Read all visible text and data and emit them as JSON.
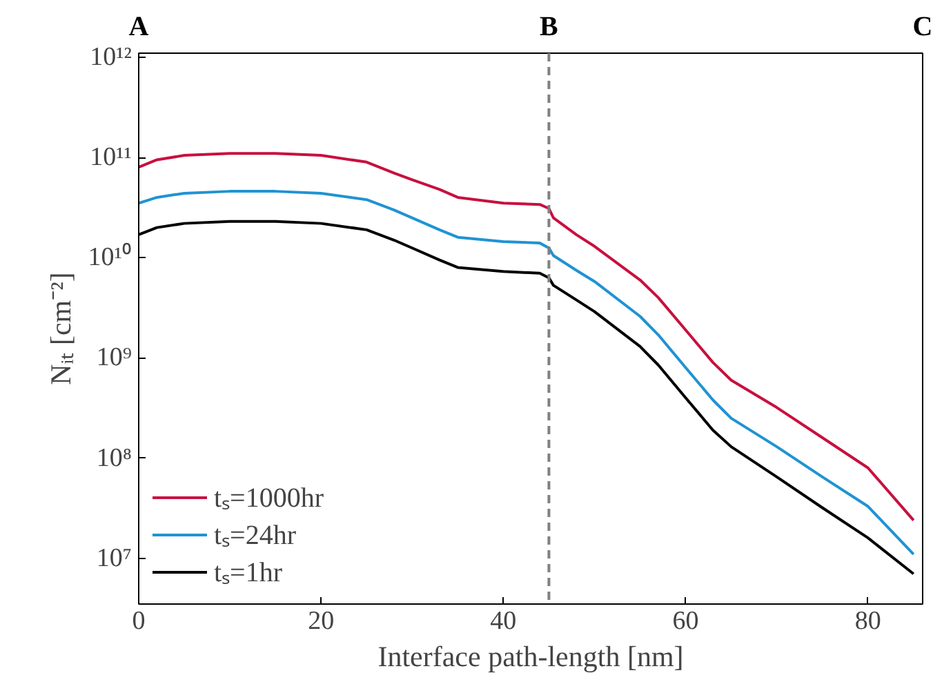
{
  "chart_data": {
    "type": "line",
    "xlabel": "Interface path-length [nm]",
    "ylabel": "Nᵢₜ [cm⁻²]",
    "log": "y",
    "grid": false,
    "legend": "bottom left",
    "line_style": "solid",
    "marker": "none",
    "xlim": [
      0,
      86
    ],
    "xticks": [
      0,
      20,
      40,
      60,
      80
    ],
    "ylim": [
      3500000,
      1100000000000
    ],
    "yticks": [
      {
        "value": 10000000,
        "label": "10⁷"
      },
      {
        "value": 100000000,
        "label": "10⁸"
      },
      {
        "value": 1000000000,
        "label": "10⁹"
      },
      {
        "value": 10000000000,
        "label": "10¹⁰"
      },
      {
        "value": 100000000000,
        "label": "10¹¹"
      },
      {
        "value": 1000000000000,
        "label": "10¹²"
      }
    ],
    "x": [
      0,
      2,
      5,
      10,
      15,
      20,
      25,
      28,
      30,
      33,
      35,
      40,
      44,
      45,
      45.5,
      48,
      50,
      55,
      57,
      60,
      63,
      65,
      70,
      75,
      80,
      85
    ],
    "series": [
      {
        "name": "tₛ=1000hr",
        "color": "#c8103e",
        "values": [
          80000000000.0,
          95000000000.0,
          105000000000.0,
          110000000000.0,
          110000000000.0,
          105000000000.0,
          90000000000.0,
          70000000000.0,
          60000000000.0,
          48000000000.0,
          40000000000.0,
          35000000000.0,
          34000000000.0,
          31000000000.0,
          25000000000.0,
          17000000000.0,
          13000000000.0,
          6000000000.0,
          4000000000.0,
          1900000000.0,
          900000000.0,
          600000000.0,
          320000000.0,
          160000000.0,
          80000000.0,
          24000000.0
        ]
      },
      {
        "name": "tₛ=24hr",
        "color": "#1f93d2",
        "values": [
          35000000000.0,
          40000000000.0,
          44000000000.0,
          46000000000.0,
          46000000000.0,
          44000000000.0,
          38000000000.0,
          30000000000.0,
          25000000000.0,
          19000000000.0,
          16000000000.0,
          14500000000.0,
          14000000000.0,
          12500000000.0,
          10500000000.0,
          7500000000.0,
          5800000000.0,
          2600000000.0,
          1700000000.0,
          800000000.0,
          380000000.0,
          250000000.0,
          130000000.0,
          65000000.0,
          33000000.0,
          11000000.0
        ]
      },
      {
        "name": "tₛ=1hr",
        "color": "#000000",
        "values": [
          17000000000.0,
          20000000000.0,
          22000000000.0,
          23000000000.0,
          23000000000.0,
          22000000000.0,
          19000000000.0,
          15000000000.0,
          12500000000.0,
          9500000000.0,
          8000000000.0,
          7300000000.0,
          7000000000.0,
          6300000000.0,
          5300000000.0,
          3800000000.0,
          2900000000.0,
          1300000000.0,
          850000000.0,
          400000000.0,
          190000000.0,
          130000000.0,
          65000000.0,
          32000000.0,
          16000000.0,
          7000000.0
        ]
      }
    ],
    "ref_lines": [
      {
        "axis": "x",
        "value": 45,
        "label": null,
        "color": "#808080",
        "line_style": "dashed"
      }
    ],
    "annotations": [
      "A",
      "B",
      "C"
    ]
  }
}
